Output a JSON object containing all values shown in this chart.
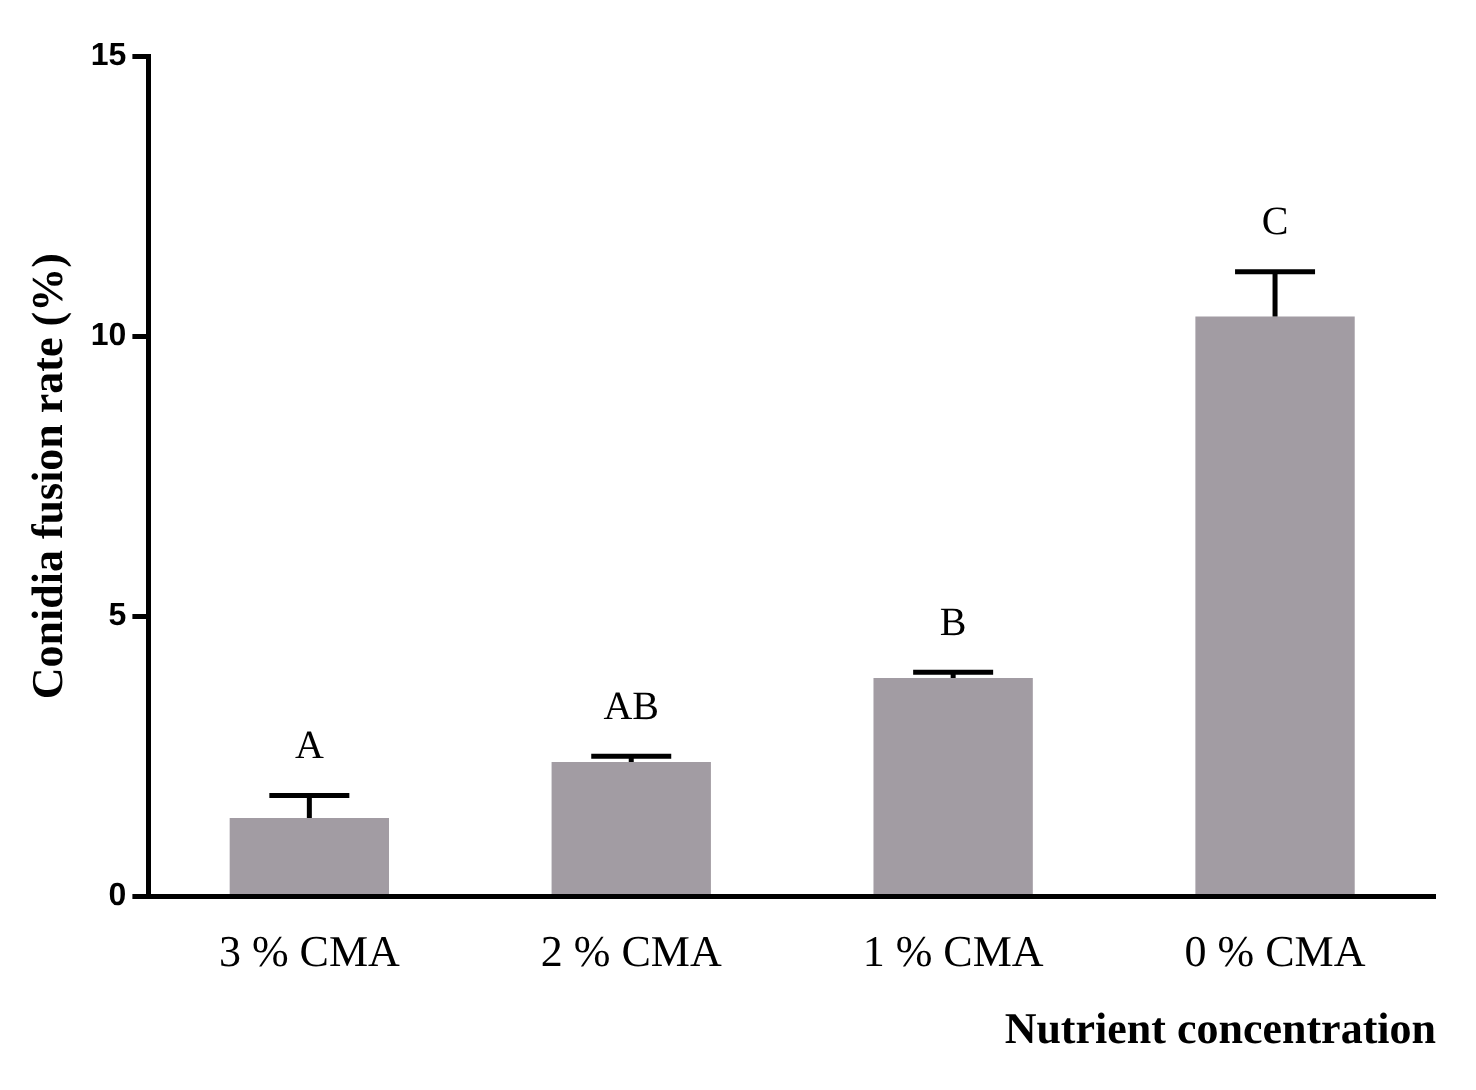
{
  "chart_data": {
    "type": "bar",
    "xlabel": "Nutrient concentration",
    "ylabel": "Conidia fusion rate (%)",
    "categories": [
      "3 % CMA",
      "2 % CMA",
      "1 % CMA",
      "0 % CMA"
    ],
    "values": [
      1.4,
      2.4,
      3.9,
      10.35
    ],
    "errors": [
      [
        1.4,
        1.8
      ],
      [
        2.4,
        2.5
      ],
      [
        3.9,
        4.0
      ],
      [
        10.35,
        11.15
      ]
    ],
    "color": "#a29ca3",
    "ylim": [
      0,
      15
    ],
    "yticks": [
      0,
      5,
      10,
      15
    ],
    "grid": false,
    "annotations": [
      "A",
      "AB",
      "B",
      "C"
    ]
  }
}
